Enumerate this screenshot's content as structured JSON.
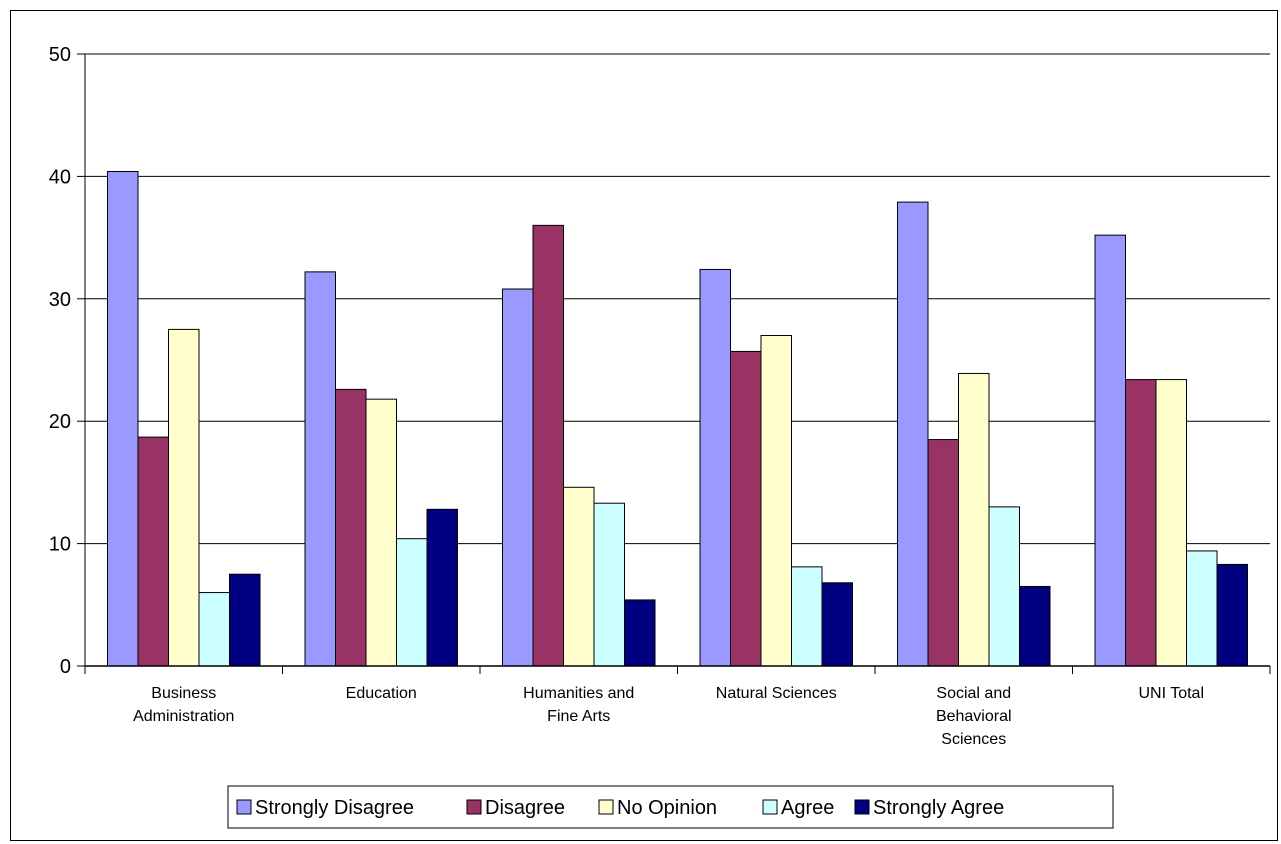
{
  "chart_data": {
    "type": "bar",
    "title": "",
    "xlabel": "",
    "ylabel": "",
    "ylim": [
      0,
      50
    ],
    "yticks": [
      0,
      10,
      20,
      30,
      40,
      50
    ],
    "grid": true,
    "legend_position": "bottom",
    "categories": [
      [
        "Business",
        "Administration"
      ],
      [
        "Education"
      ],
      [
        "Humanities and",
        "Fine Arts"
      ],
      [
        "Natural Sciences"
      ],
      [
        "Social and",
        "Behavioral",
        "Sciences"
      ],
      [
        "UNI Total"
      ]
    ],
    "series": [
      {
        "name": "Strongly Disagree",
        "color": "#9999ff",
        "values": [
          40.4,
          32.2,
          30.8,
          32.4,
          37.9,
          35.2
        ]
      },
      {
        "name": "Disagree",
        "color": "#993366",
        "values": [
          18.7,
          22.6,
          36.0,
          25.7,
          18.5,
          23.4
        ]
      },
      {
        "name": "No Opinion",
        "color": "#ffffcc",
        "values": [
          27.5,
          21.8,
          14.6,
          27.0,
          23.9,
          23.4
        ]
      },
      {
        "name": "Agree",
        "color": "#ccffff",
        "values": [
          6.0,
          10.4,
          13.3,
          8.1,
          13.0,
          9.4
        ]
      },
      {
        "name": "Strongly Agree",
        "color": "#000080",
        "values": [
          7.5,
          12.8,
          5.4,
          6.8,
          6.5,
          8.3
        ]
      }
    ]
  }
}
